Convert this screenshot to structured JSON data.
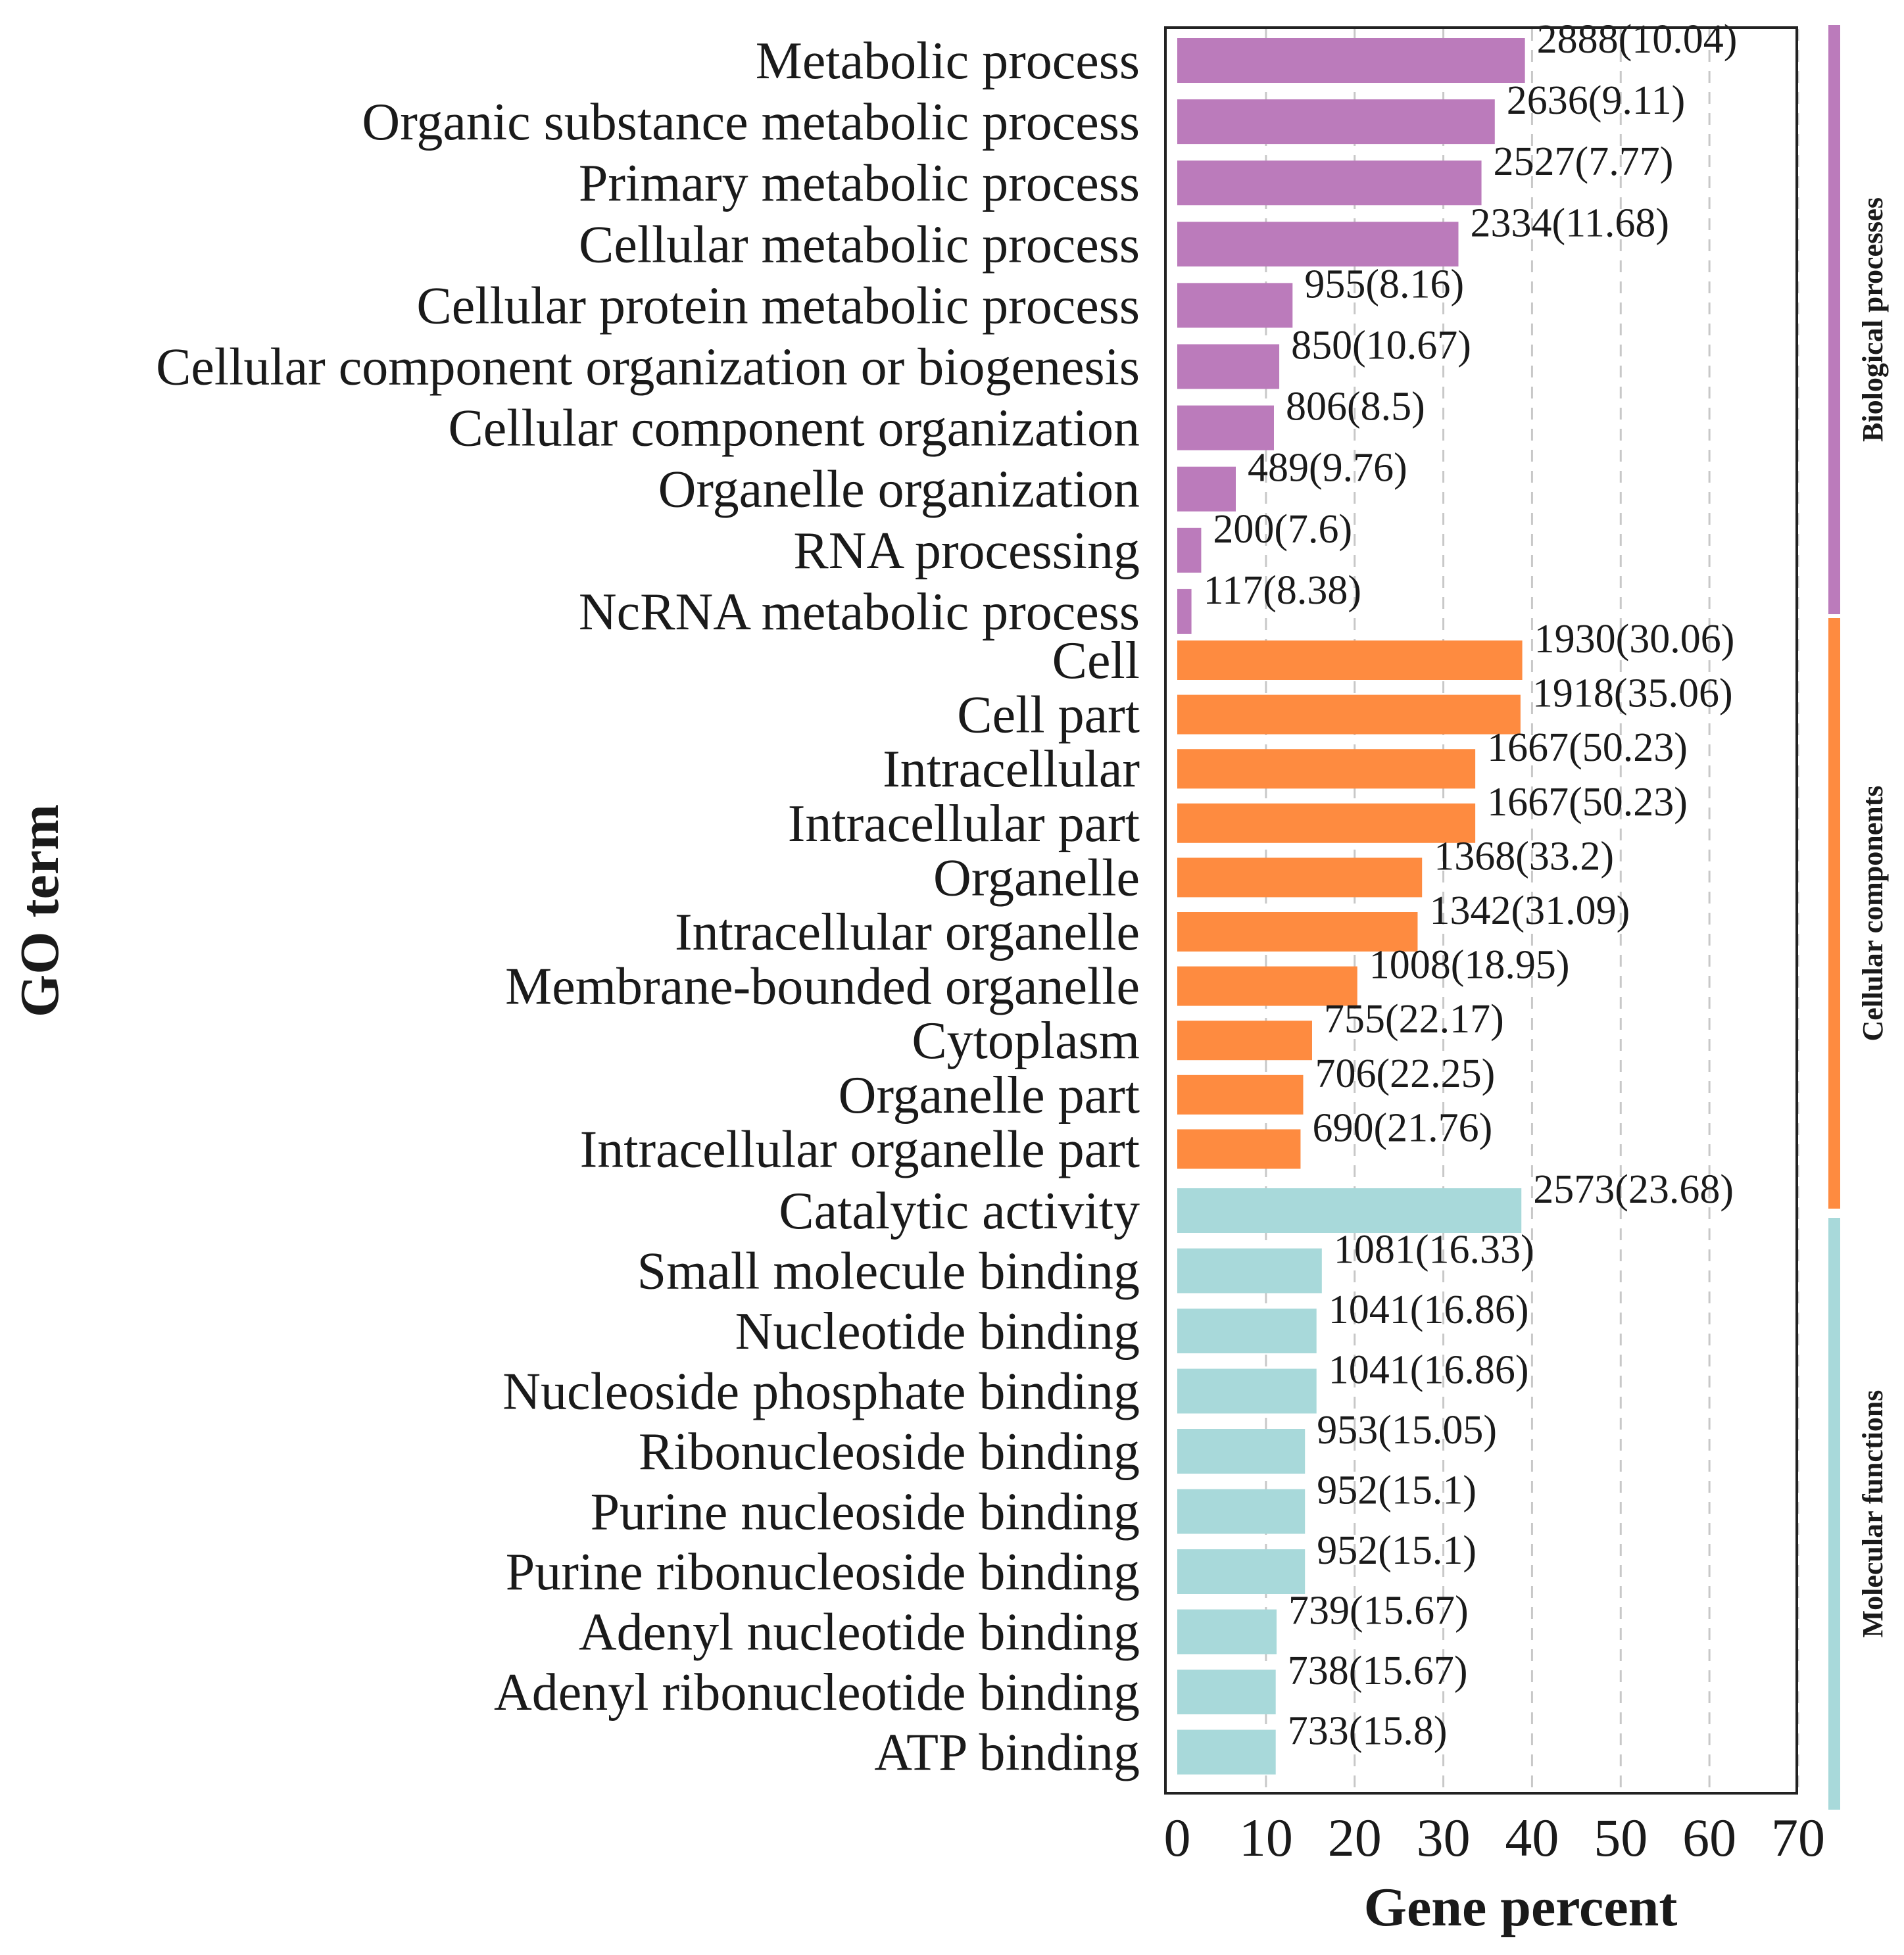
{
  "chart_data": {
    "type": "bar",
    "orientation": "horizontal",
    "ylabel": "GO term",
    "xlabel": "Gene percent",
    "xlim": [
      0,
      70
    ],
    "xticks": [
      0,
      10,
      20,
      30,
      40,
      50,
      60,
      70
    ],
    "grid": "vertical dashed",
    "groups": [
      {
        "name": "Biological processes",
        "color": "#bb7bbb",
        "categories": [
          "Metabolic process",
          "Organic substance metabolic process",
          "Primary metabolic process",
          "Cellular metabolic process",
          "Cellular protein metabolic process",
          "Cellular component organization or biogenesis",
          "Cellular component organization",
          "Organelle organization",
          "RNA processing",
          "NcRNA metabolic process"
        ],
        "values": [
          39.2,
          35.8,
          34.3,
          31.7,
          13.0,
          11.5,
          10.9,
          6.6,
          2.7,
          1.6
        ],
        "labels": [
          "2888(10.04)",
          "2636(9.11)",
          "2527(7.77)",
          "2334(11.68)",
          "955(8.16)",
          "850(10.67)",
          "806(8.5)",
          "489(9.76)",
          "200(7.6)",
          "117(8.38)"
        ]
      },
      {
        "name": "Cellular components",
        "color": "#fe8b40",
        "categories": [
          "Cell",
          "Cell part",
          "Intracellular",
          "Intracellular part",
          "Organelle",
          "Intracellular organelle",
          "Membrane-bounded organelle",
          "Cytoplasm",
          "Organelle part",
          "Intracellular organelle part"
        ],
        "values": [
          38.9,
          38.7,
          33.6,
          33.6,
          27.6,
          27.1,
          20.3,
          15.2,
          14.2,
          13.9
        ],
        "labels": [
          "1930(30.06)",
          "1918(35.06)",
          "1667(50.23)",
          "1667(50.23)",
          "1368(33.2)",
          "1342(31.09)",
          "1008(18.95)",
          "755(22.17)",
          "706(22.25)",
          "690(21.76)"
        ]
      },
      {
        "name": "Molecular functions",
        "color": "#a8d9da",
        "categories": [
          "Catalytic activity",
          "Small molecule binding",
          "Nucleotide binding",
          "Nucleoside phosphate binding",
          "Ribonucleoside binding",
          "Purine nucleoside binding",
          "Purine ribonucleoside binding",
          "Adenyl nucleotide binding",
          "Adenyl ribonucleotide binding",
          "ATP binding"
        ],
        "values": [
          38.8,
          16.3,
          15.7,
          15.7,
          14.4,
          14.4,
          14.4,
          11.2,
          11.1,
          11.1
        ],
        "labels": [
          "2573(23.68)",
          "1081(16.33)",
          "1041(16.86)",
          "1041(16.86)",
          "953(15.05)",
          "952(15.1)",
          "952(15.1)",
          "739(15.67)",
          "738(15.67)",
          "733(15.8)"
        ]
      }
    ]
  }
}
